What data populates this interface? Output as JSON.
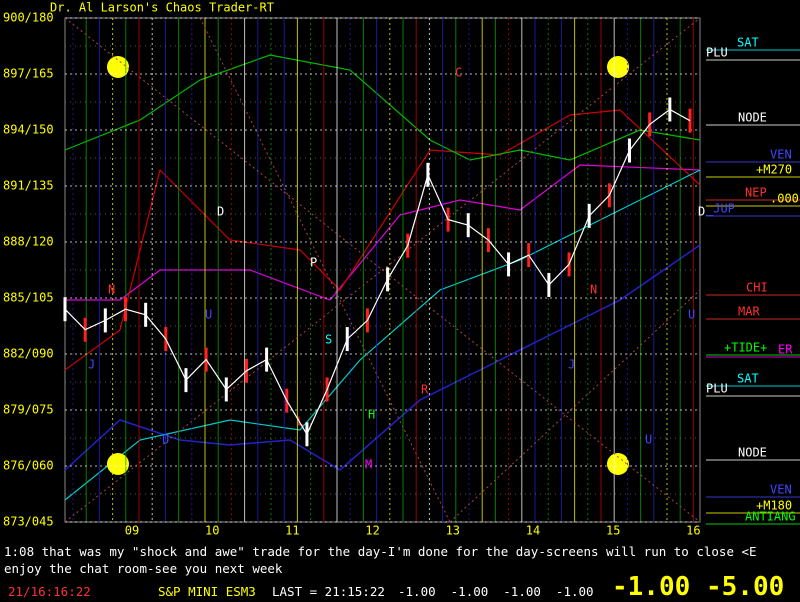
{
  "header": {
    "title": "Dr. Al Larson's Chaos Trader-RT"
  },
  "y_axis": [
    "900/180",
    "897/165",
    "894/150",
    "891/135",
    "888/120",
    "885/105",
    "882/090",
    "879/075",
    "876/060",
    "873/045"
  ],
  "x_axis": [
    "09",
    "10",
    "11",
    "12",
    "13",
    "14",
    "15",
    "16"
  ],
  "right_labels": [
    "SAT",
    "PLU",
    "NODE",
    "VEN",
    "+M270",
    "NEP",
    ".000",
    "_JUP",
    "CHI",
    "MAR",
    "+TIDE+",
    "ER",
    "SAT",
    "PLU",
    "NODE",
    "VEN",
    "+M180",
    "ANTIANG"
  ],
  "annotations": [
    "C",
    "P",
    "S",
    "R",
    "M",
    "N",
    "N",
    "U",
    "U",
    "J",
    "J",
    "U",
    "U",
    "L",
    "H",
    "D",
    "D"
  ],
  "price": {
    "values": [
      884.4,
      883.3,
      883.8,
      884.4,
      884.1,
      882.8,
      880.6,
      881.7,
      880.1,
      881.1,
      881.7,
      879.5,
      877.7,
      880.1,
      882.8,
      883.8,
      886.0,
      887.8,
      891.6,
      889.2,
      888.9,
      888.1,
      886.8,
      887.3,
      885.7,
      886.8,
      889.4,
      890.5,
      892.9,
      894.3,
      895.1,
      894.5
    ],
    "ylim": [
      873,
      900
    ]
  },
  "chat": [
    "1:08 that was my \"shock and awe\" trade for the day-I'm done for the day-screens will run to close <E",
    "enjoy the chat room-see you next week"
  ],
  "status": {
    "time": "21/16:16:22",
    "symbol": "S&P MINI ESM3",
    "last": "LAST = 21:15:22",
    "changes": [
      "-1.00",
      "-1.00",
      "-1.00",
      "-1.00"
    ],
    "big": [
      "-1.00",
      "-5.00"
    ]
  }
}
